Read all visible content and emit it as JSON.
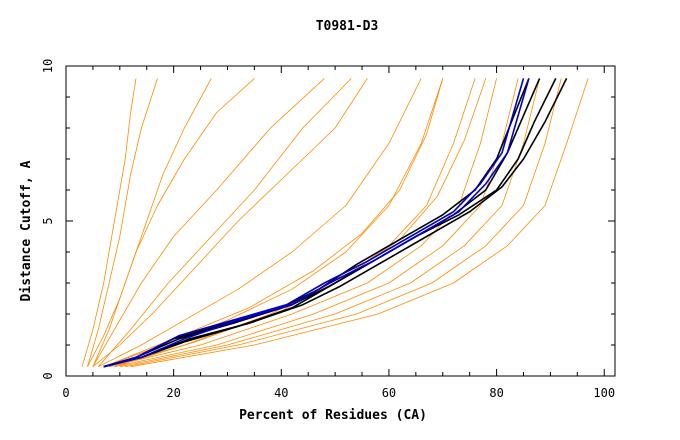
{
  "chart_data": {
    "type": "line",
    "title": "T0981-D3",
    "xlabel": "Percent of Residues (CA)",
    "ylabel": "Distance Cutoff, A",
    "xlim": [
      0,
      102
    ],
    "ylim": [
      0,
      10
    ],
    "xticks": [
      0,
      20,
      40,
      60,
      80,
      100
    ],
    "yticks": [
      0,
      5,
      10
    ],
    "grid": false,
    "legend": "none",
    "colors": {
      "background": "#ffffff",
      "model_lines": "#ff8c00",
      "highlight_black": "#000000",
      "highlight_blue": "#0000cc"
    },
    "series": [
      {
        "group": "background-models",
        "color": "#ff8c00",
        "x": [
          4,
          6,
          8,
          10,
          12,
          14,
          17
        ],
        "y": [
          0.3,
          1.5,
          3,
          4.5,
          6.5,
          8,
          9.6
        ]
      },
      {
        "group": "background-models",
        "color": "#ff8c00",
        "x": [
          5,
          8,
          11,
          14,
          18,
          22,
          27
        ],
        "y": [
          0.3,
          1.5,
          3,
          4.5,
          6.5,
          8,
          9.6
        ]
      },
      {
        "group": "background-models",
        "color": "#ff8c00",
        "x": [
          4,
          7,
          10,
          13,
          17,
          22,
          28,
          35
        ],
        "y": [
          0.3,
          1.3,
          2.5,
          4,
          5.5,
          7,
          8.5,
          9.6
        ]
      },
      {
        "group": "background-models",
        "color": "#ff8c00",
        "x": [
          5,
          9,
          14,
          20,
          28,
          38,
          48
        ],
        "y": [
          0.3,
          1.5,
          3,
          4.5,
          6,
          8,
          9.6
        ]
      },
      {
        "group": "background-models",
        "color": "#ff8c00",
        "x": [
          6,
          12,
          19,
          27,
          35,
          44,
          53
        ],
        "y": [
          0.3,
          1.5,
          3,
          4.5,
          6,
          8,
          9.6
        ]
      },
      {
        "group": "background-models",
        "color": "#ff8c00",
        "x": [
          3,
          5,
          7,
          9,
          11,
          12,
          13
        ],
        "y": [
          0.3,
          1.5,
          3,
          5,
          7,
          8.5,
          9.6
        ]
      },
      {
        "group": "background-models",
        "color": "#ff8c00",
        "x": [
          5,
          10,
          16,
          24,
          32,
          41,
          50,
          56
        ],
        "y": [
          0.3,
          1,
          2,
          3.5,
          5,
          6.5,
          8,
          9.6
        ]
      },
      {
        "group": "background-models",
        "color": "#ff8c00",
        "x": [
          6,
          14,
          22,
          32,
          42,
          52,
          60,
          66
        ],
        "y": [
          0.3,
          1,
          1.8,
          2.8,
          4,
          5.5,
          7.5,
          9.6
        ]
      },
      {
        "group": "background-models",
        "color": "#ff8c00",
        "x": [
          7,
          18,
          30,
          42,
          52,
          60,
          66,
          70
        ],
        "y": [
          0.3,
          1,
          1.8,
          2.8,
          4,
          5.5,
          7.5,
          9.6
        ]
      },
      {
        "group": "background-models",
        "color": "#ff8c00",
        "x": [
          8,
          22,
          38,
          50,
          60,
          67,
          72,
          76
        ],
        "y": [
          0.3,
          1,
          2,
          3,
          4.2,
          5.5,
          7.5,
          9.6
        ]
      },
      {
        "group": "background-models",
        "color": "#ff8c00",
        "x": [
          8,
          25,
          42,
          56,
          66,
          73,
          77,
          80
        ],
        "y": [
          0.3,
          1,
          2,
          3,
          4.2,
          5.5,
          7.5,
          9.6
        ]
      },
      {
        "group": "background-models",
        "color": "#ff8c00",
        "x": [
          9,
          28,
          46,
          60,
          70,
          77,
          81,
          84
        ],
        "y": [
          0.3,
          1,
          2,
          3,
          4.2,
          5.5,
          7.5,
          9.6
        ]
      },
      {
        "group": "background-models",
        "color": "#ff8c00",
        "x": [
          10,
          30,
          50,
          64,
          74,
          81,
          85,
          88
        ],
        "y": [
          0.3,
          1,
          2,
          3,
          4.2,
          5.5,
          7.5,
          9.6
        ]
      },
      {
        "group": "background-models",
        "color": "#ff8c00",
        "x": [
          11,
          32,
          54,
          68,
          78,
          85,
          89,
          92
        ],
        "y": [
          0.3,
          1,
          2,
          3,
          4.2,
          5.5,
          7.5,
          9.6
        ]
      },
      {
        "group": "background-models",
        "color": "#ff8c00",
        "x": [
          12,
          35,
          58,
          72,
          82,
          89,
          93,
          97
        ],
        "y": [
          0.3,
          1,
          2,
          3,
          4.2,
          5.5,
          7.5,
          9.6
        ]
      },
      {
        "group": "background-models",
        "color": "#ff8c00",
        "x": [
          7,
          20,
          34,
          46,
          55,
          62,
          67,
          70
        ],
        "y": [
          0.3,
          1.2,
          2.2,
          3.4,
          4.6,
          6,
          7.8,
          9.6
        ]
      },
      {
        "group": "background-models",
        "color": "#ff8c00",
        "x": [
          9,
          24,
          40,
          52,
          62,
          69,
          74,
          78
        ],
        "y": [
          0.3,
          1.1,
          2.1,
          3.2,
          4.4,
          5.8,
          7.6,
          9.6
        ]
      },
      {
        "group": "highlight-models",
        "color": "#000000",
        "x": [
          7,
          13,
          20,
          30,
          40,
          47,
          54,
          62,
          70,
          76,
          80,
          83,
          86
        ],
        "y": [
          0.3,
          0.6,
          1.2,
          1.7,
          2.2,
          2.8,
          3.6,
          4.4,
          5.2,
          6,
          7,
          8.3,
          9.6
        ]
      },
      {
        "group": "highlight-models",
        "color": "#000000",
        "x": [
          7,
          14,
          22,
          32,
          42,
          48,
          56,
          64,
          72,
          78,
          82,
          85,
          88
        ],
        "y": [
          0.3,
          0.6,
          1.1,
          1.6,
          2.2,
          2.8,
          3.6,
          4.4,
          5.2,
          6,
          7.2,
          8.4,
          9.6
        ]
      },
      {
        "group": "highlight-models",
        "color": "#000000",
        "x": [
          7,
          13,
          21,
          31,
          42,
          49,
          57,
          65,
          73,
          80,
          84,
          87,
          91
        ],
        "y": [
          0.3,
          0.6,
          1.2,
          1.7,
          2.3,
          2.9,
          3.7,
          4.5,
          5.2,
          6,
          7,
          8.2,
          9.6
        ]
      },
      {
        "group": "highlight-models",
        "color": "#000000",
        "x": [
          7,
          14,
          23,
          34,
          44,
          51,
          59,
          67,
          75,
          81,
          85,
          89,
          93
        ],
        "y": [
          0.3,
          0.6,
          1.2,
          1.7,
          2.3,
          2.9,
          3.7,
          4.5,
          5.3,
          6.1,
          7,
          8.2,
          9.6
        ]
      },
      {
        "group": "highlight-models",
        "color": "#0000cc",
        "x": [
          7,
          13,
          21,
          31,
          41,
          48,
          56,
          64,
          72,
          77,
          81,
          83,
          85
        ],
        "y": [
          0.3,
          0.6,
          1.3,
          1.8,
          2.3,
          3,
          3.7,
          4.5,
          5.3,
          6.2,
          7.2,
          8.4,
          9.6
        ]
      },
      {
        "group": "highlight-models",
        "color": "#0000cc",
        "x": [
          7,
          14,
          22,
          32,
          42,
          49,
          57,
          65,
          73,
          78,
          82,
          84,
          86
        ],
        "y": [
          0.3,
          0.6,
          1.2,
          1.8,
          2.3,
          3,
          3.7,
          4.5,
          5.3,
          6.2,
          7.2,
          8.4,
          9.6
        ]
      }
    ]
  }
}
